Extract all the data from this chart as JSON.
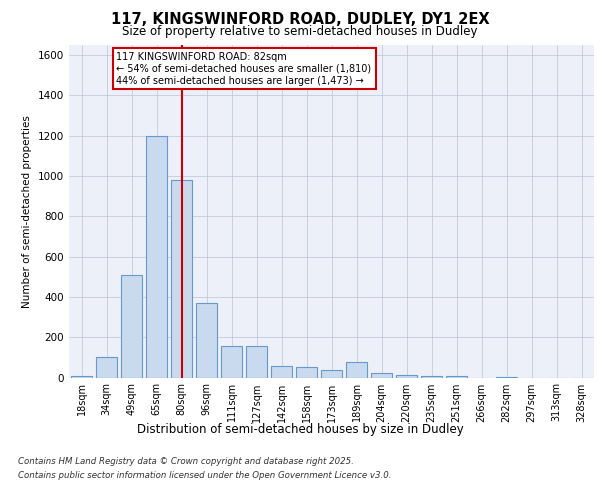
{
  "title_line1": "117, KINGSWINFORD ROAD, DUDLEY, DY1 2EX",
  "title_line2": "Size of property relative to semi-detached houses in Dudley",
  "xlabel": "Distribution of semi-detached houses by size in Dudley",
  "ylabel": "Number of semi-detached properties",
  "categories": [
    "18sqm",
    "34sqm",
    "49sqm",
    "65sqm",
    "80sqm",
    "96sqm",
    "111sqm",
    "127sqm",
    "142sqm",
    "158sqm",
    "173sqm",
    "189sqm",
    "204sqm",
    "220sqm",
    "235sqm",
    "251sqm",
    "266sqm",
    "282sqm",
    "297sqm",
    "313sqm",
    "328sqm"
  ],
  "values": [
    5,
    100,
    510,
    1200,
    980,
    370,
    155,
    155,
    55,
    50,
    35,
    75,
    20,
    10,
    5,
    5,
    0,
    3,
    0,
    0,
    0
  ],
  "bar_color": "#c9d9ee",
  "bar_edge_color": "#6699cc",
  "highlight_index": 4,
  "highlight_color": "#cc0000",
  "annotation_title": "117 KINGSWINFORD ROAD: 82sqm",
  "annotation_line1": "← 54% of semi-detached houses are smaller (1,810)",
  "annotation_line2": "44% of semi-detached houses are larger (1,473) →",
  "annotation_box_color": "#ffffff",
  "annotation_box_edge": "#cc0000",
  "ylim": [
    0,
    1650
  ],
  "yticks": [
    0,
    200,
    400,
    600,
    800,
    1000,
    1200,
    1400,
    1600
  ],
  "bg_color": "#edf0f8",
  "footnote1": "Contains HM Land Registry data © Crown copyright and database right 2025.",
  "footnote2": "Contains public sector information licensed under the Open Government Licence v3.0."
}
